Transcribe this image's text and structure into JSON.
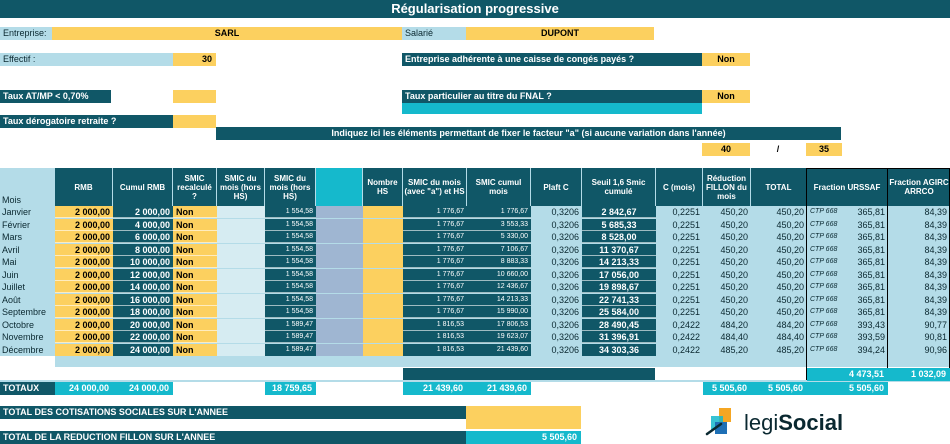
{
  "title": "Régularisation progressive",
  "header": {
    "entreprise_label": "Entreprise:",
    "entreprise_value": "SARL",
    "salarie_label": "Salarié",
    "salarie_value": "DUPONT",
    "effectif_label": "Effectif :",
    "effectif_value": "30",
    "conges_label": "Entreprise adhérente à une caisse de congés payés ?",
    "conges_value": "Non",
    "atmp_label": "Taux AT/MP < 0,70%",
    "fnal_label": "Taux particulier au titre du FNAL ?",
    "fnal_value": "Non",
    "retraite_label": "Taux dérogatoire retraite ?",
    "facteur_label": "Indiquez ici les éléments permettant de fixer le facteur \"a\" (si aucune variation dans l'année)",
    "facteur_num": "40",
    "facteur_sep": "/",
    "facteur_den": "35"
  },
  "columns": {
    "mois": "Mois",
    "rmb": "RMB",
    "cumul_rmb": "Cumul RMB",
    "smic_recalcule": "SMIC recalculé ?",
    "smic_mois_hors_hs": "SMIC du mois (hors HS)",
    "smic_mois_hors_hs2": "SMIC du mois (hors HS)",
    "nombre_hs": "Nombre HS",
    "smic_mois_a": "SMIC du mois (avec \"a\") et HS",
    "smic_cumul": "SMIC cumul mois",
    "plaft_c": "Plaft C",
    "seuil": "Seuil 1,6 Smic cumulé",
    "c_mois": "C (mois)",
    "reduction": "Réduction FILLON du mois",
    "total": "TOTAL",
    "fraction_urssaf": "Fraction URSSAF",
    "fraction_agirc": "Fraction AGIRC ARRCO"
  },
  "rows": [
    {
      "mois": "Janvier",
      "rmb": "2 000,00",
      "cumul": "2 000,00",
      "recalc": "Non",
      "smic": "1 554,58",
      "smic_a": "1 776,67",
      "smic_cumul": "1 776,67",
      "plaft": "0,3206",
      "seuil": "2 842,67",
      "c": "0,2251",
      "red": "450,20",
      "total": "450,20",
      "ctp": "CTP 668",
      "urssaf": "365,81",
      "agirc": "84,39"
    },
    {
      "mois": "Février",
      "rmb": "2 000,00",
      "cumul": "4 000,00",
      "recalc": "Non",
      "smic": "1 554,58",
      "smic_a": "1 776,67",
      "smic_cumul": "3 553,33",
      "plaft": "0,3206",
      "seuil": "5 685,33",
      "c": "0,2251",
      "red": "450,20",
      "total": "450,20",
      "ctp": "CTP 668",
      "urssaf": "365,81",
      "agirc": "84,39"
    },
    {
      "mois": "Mars",
      "rmb": "2 000,00",
      "cumul": "6 000,00",
      "recalc": "Non",
      "smic": "1 554,58",
      "smic_a": "1 776,67",
      "smic_cumul": "5 330,00",
      "plaft": "0,3206",
      "seuil": "8 528,00",
      "c": "0,2251",
      "red": "450,20",
      "total": "450,20",
      "ctp": "CTP 668",
      "urssaf": "365,81",
      "agirc": "84,39"
    },
    {
      "mois": "Avril",
      "rmb": "2 000,00",
      "cumul": "8 000,00",
      "recalc": "Non",
      "smic": "1 554,58",
      "smic_a": "1 776,67",
      "smic_cumul": "7 106,67",
      "plaft": "0,3206",
      "seuil": "11 370,67",
      "c": "0,2251",
      "red": "450,20",
      "total": "450,20",
      "ctp": "CTP 668",
      "urssaf": "365,81",
      "agirc": "84,39"
    },
    {
      "mois": "Mai",
      "rmb": "2 000,00",
      "cumul": "10 000,00",
      "recalc": "Non",
      "smic": "1 554,58",
      "smic_a": "1 776,67",
      "smic_cumul": "8 883,33",
      "plaft": "0,3206",
      "seuil": "14 213,33",
      "c": "0,2251",
      "red": "450,20",
      "total": "450,20",
      "ctp": "CTP 668",
      "urssaf": "365,81",
      "agirc": "84,39"
    },
    {
      "mois": "Juin",
      "rmb": "2 000,00",
      "cumul": "12 000,00",
      "recalc": "Non",
      "smic": "1 554,58",
      "smic_a": "1 776,67",
      "smic_cumul": "10 660,00",
      "plaft": "0,3206",
      "seuil": "17 056,00",
      "c": "0,2251",
      "red": "450,20",
      "total": "450,20",
      "ctp": "CTP 668",
      "urssaf": "365,81",
      "agirc": "84,39"
    },
    {
      "mois": "Juillet",
      "rmb": "2 000,00",
      "cumul": "14 000,00",
      "recalc": "Non",
      "smic": "1 554,58",
      "smic_a": "1 776,67",
      "smic_cumul": "12 436,67",
      "plaft": "0,3206",
      "seuil": "19 898,67",
      "c": "0,2251",
      "red": "450,20",
      "total": "450,20",
      "ctp": "CTP 668",
      "urssaf": "365,81",
      "agirc": "84,39"
    },
    {
      "mois": "Août",
      "rmb": "2 000,00",
      "cumul": "16 000,00",
      "recalc": "Non",
      "smic": "1 554,58",
      "smic_a": "1 776,67",
      "smic_cumul": "14 213,33",
      "plaft": "0,3206",
      "seuil": "22 741,33",
      "c": "0,2251",
      "red": "450,20",
      "total": "450,20",
      "ctp": "CTP 668",
      "urssaf": "365,81",
      "agirc": "84,39"
    },
    {
      "mois": "Septembre",
      "rmb": "2 000,00",
      "cumul": "18 000,00",
      "recalc": "Non",
      "smic": "1 554,58",
      "smic_a": "1 776,67",
      "smic_cumul": "15 990,00",
      "plaft": "0,3206",
      "seuil": "25 584,00",
      "c": "0,2251",
      "red": "450,20",
      "total": "450,20",
      "ctp": "CTP 668",
      "urssaf": "365,81",
      "agirc": "84,39"
    },
    {
      "mois": "Octobre",
      "rmb": "2 000,00",
      "cumul": "20 000,00",
      "recalc": "Non",
      "smic": "1 589,47",
      "smic_a": "1 816,53",
      "smic_cumul": "17 806,53",
      "plaft": "0,3206",
      "seuil": "28 490,45",
      "c": "0,2422",
      "red": "484,20",
      "total": "484,20",
      "ctp": "CTP 668",
      "urssaf": "393,43",
      "agirc": "90,77"
    },
    {
      "mois": "Novembre",
      "rmb": "2 000,00",
      "cumul": "22 000,00",
      "recalc": "Non",
      "smic": "1 589,47",
      "smic_a": "1 816,53",
      "smic_cumul": "19 623,07",
      "plaft": "0,3206",
      "seuil": "31 396,91",
      "c": "0,2422",
      "red": "484,40",
      "total": "484,40",
      "ctp": "CTP 668",
      "urssaf": "393,59",
      "agirc": "90,81"
    },
    {
      "mois": "Décembre",
      "rmb": "2 000,00",
      "cumul": "24 000,00",
      "recalc": "Non",
      "smic": "1 589,47",
      "smic_a": "1 816,53",
      "smic_cumul": "21 439,60",
      "plaft": "0,3206",
      "seuil": "34 303,36",
      "c": "0,2422",
      "red": "485,20",
      "total": "485,20",
      "ctp": "CTP 668",
      "urssaf": "394,24",
      "agirc": "90,96"
    }
  ],
  "totals": {
    "label": "TOTAUX",
    "rmb": "24 000,00",
    "cumul": "24 000,00",
    "smic": "18 759,65",
    "smic_a": "21 439,60",
    "smic_cumul": "21 439,60",
    "red": "5 505,60",
    "total": "5 505,60",
    "total2": "5 505,60",
    "urssaf": "4 473,51",
    "agirc": "1 032,09"
  },
  "footer": {
    "cotisations_label": "TOTAL DES COTISATIONS SOCIALES SUR L'ANNEE",
    "reduction_label": "TOTAL DE LA REDUCTION FILLON SUR L'ANNEE",
    "reduction_value": "5 505,60",
    "logo_part1": "legi",
    "logo_part2": "Social"
  },
  "colors": {
    "dark": "#105767",
    "light": "#b4dce8",
    "yellow": "#fcd05f",
    "cyan": "#15b9cc"
  }
}
